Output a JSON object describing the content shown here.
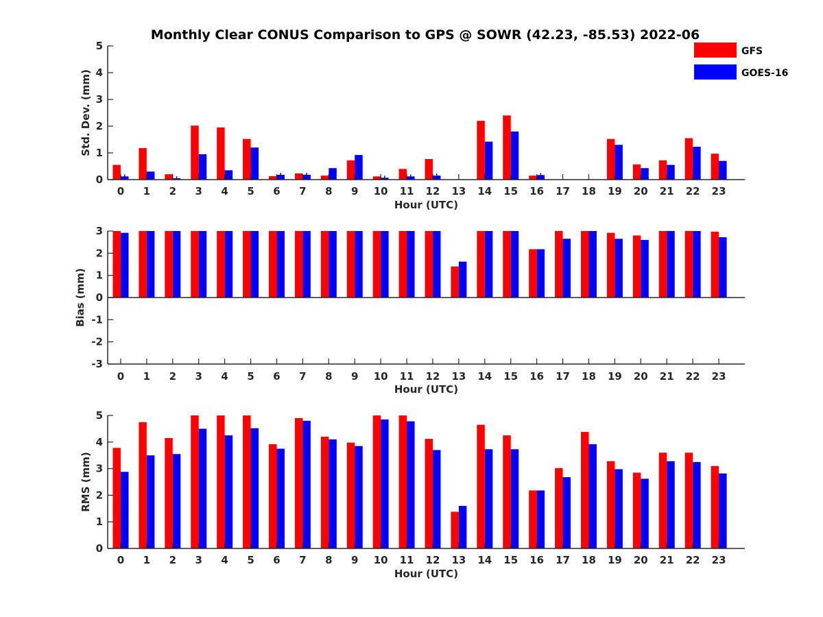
{
  "figure_title": "Monthly Clear CONUS Comparison to GPS @ SOWR (42.23, -85.53) 2022-06",
  "chart_data": [
    {
      "type": "bar",
      "title": "Monthly Clear CONUS Comparison to GPS @ SOWR (42.23, -85.53) 2022-06",
      "xlabel": "Hour (UTC)",
      "ylabel": "Std. Dev. (mm)",
      "ylim": [
        0,
        5
      ],
      "yticks": [
        "0",
        "1",
        "2",
        "3",
        "4",
        "5"
      ],
      "categories": [
        "0",
        "1",
        "2",
        "3",
        "4",
        "5",
        "6",
        "7",
        "8",
        "9",
        "10",
        "11",
        "12",
        "13",
        "14",
        "15",
        "16",
        "17",
        "18",
        "19",
        "20",
        "21",
        "22",
        "23"
      ],
      "legend_placement": "top-right",
      "series": [
        {
          "name": "GFS",
          "color": "#ff0000",
          "values": [
            0.55,
            1.18,
            0.2,
            2.02,
            1.95,
            1.52,
            0.13,
            0.23,
            0.15,
            0.72,
            0.12,
            0.4,
            0.77,
            0,
            2.2,
            2.4,
            0.15,
            0,
            0,
            1.52,
            0.57,
            0.72,
            1.55,
            0.97
          ]
        },
        {
          "name": "GOES-16",
          "color": "#0000ff",
          "values": [
            0.12,
            0.3,
            0.05,
            0.95,
            0.35,
            1.2,
            0.18,
            0.18,
            0.43,
            0.92,
            0.07,
            0.12,
            0.15,
            0,
            1.42,
            1.8,
            0.17,
            0,
            0,
            1.3,
            0.43,
            0.55,
            1.23,
            0.7
          ]
        }
      ],
      "error_ticks": [
        0,
        2,
        6,
        7,
        10,
        11,
        12,
        16
      ]
    },
    {
      "type": "bar",
      "xlabel": "Hour (UTC)",
      "ylabel": "Bias (mm)",
      "ylim": [
        -3,
        3
      ],
      "yticks": [
        "-3",
        "-2",
        "-1",
        "0",
        "1",
        "2",
        "3"
      ],
      "categories": [
        "0",
        "1",
        "2",
        "3",
        "4",
        "5",
        "6",
        "7",
        "8",
        "9",
        "10",
        "11",
        "12",
        "13",
        "14",
        "15",
        "16",
        "17",
        "18",
        "19",
        "20",
        "21",
        "22",
        "23"
      ],
      "series": [
        {
          "name": "GFS",
          "color": "#ff0000",
          "values": [
            3.0,
            3.0,
            3.0,
            3.0,
            3.0,
            3.0,
            3.0,
            3.0,
            3.0,
            3.0,
            3.0,
            3.0,
            3.0,
            1.4,
            3.0,
            3.0,
            2.18,
            3.0,
            3.0,
            2.92,
            2.8,
            3.0,
            3.0,
            2.97
          ]
        },
        {
          "name": "GOES-16",
          "color": "#0000ff",
          "values": [
            2.92,
            3.0,
            3.0,
            3.0,
            3.0,
            3.0,
            3.0,
            3.0,
            3.0,
            3.0,
            3.0,
            3.0,
            3.0,
            1.62,
            3.0,
            3.0,
            2.18,
            2.65,
            3.0,
            2.65,
            2.6,
            3.0,
            3.0,
            2.72
          ]
        }
      ]
    },
    {
      "type": "bar",
      "xlabel": "Hour (UTC)",
      "ylabel": "RMS (mm)",
      "ylim": [
        0,
        5
      ],
      "yticks": [
        "0",
        "1",
        "2",
        "3",
        "4",
        "5"
      ],
      "categories": [
        "0",
        "1",
        "2",
        "3",
        "4",
        "5",
        "6",
        "7",
        "8",
        "9",
        "10",
        "11",
        "12",
        "13",
        "14",
        "15",
        "16",
        "17",
        "18",
        "19",
        "20",
        "21",
        "22",
        "23"
      ],
      "series": [
        {
          "name": "GFS",
          "color": "#ff0000",
          "values": [
            3.78,
            4.75,
            4.15,
            5.0,
            5.0,
            5.0,
            3.92,
            4.9,
            4.2,
            3.98,
            5.0,
            5.0,
            4.12,
            1.38,
            4.65,
            4.25,
            2.18,
            3.02,
            4.38,
            3.28,
            2.85,
            3.6,
            3.6,
            3.1
          ]
        },
        {
          "name": "GOES-16",
          "color": "#0000ff",
          "values": [
            2.88,
            3.5,
            3.55,
            4.5,
            4.25,
            4.52,
            3.75,
            4.8,
            4.1,
            3.85,
            4.85,
            4.78,
            3.7,
            1.6,
            3.73,
            3.73,
            2.18,
            2.68,
            3.92,
            2.98,
            2.62,
            3.28,
            3.25,
            2.82
          ]
        }
      ]
    }
  ]
}
